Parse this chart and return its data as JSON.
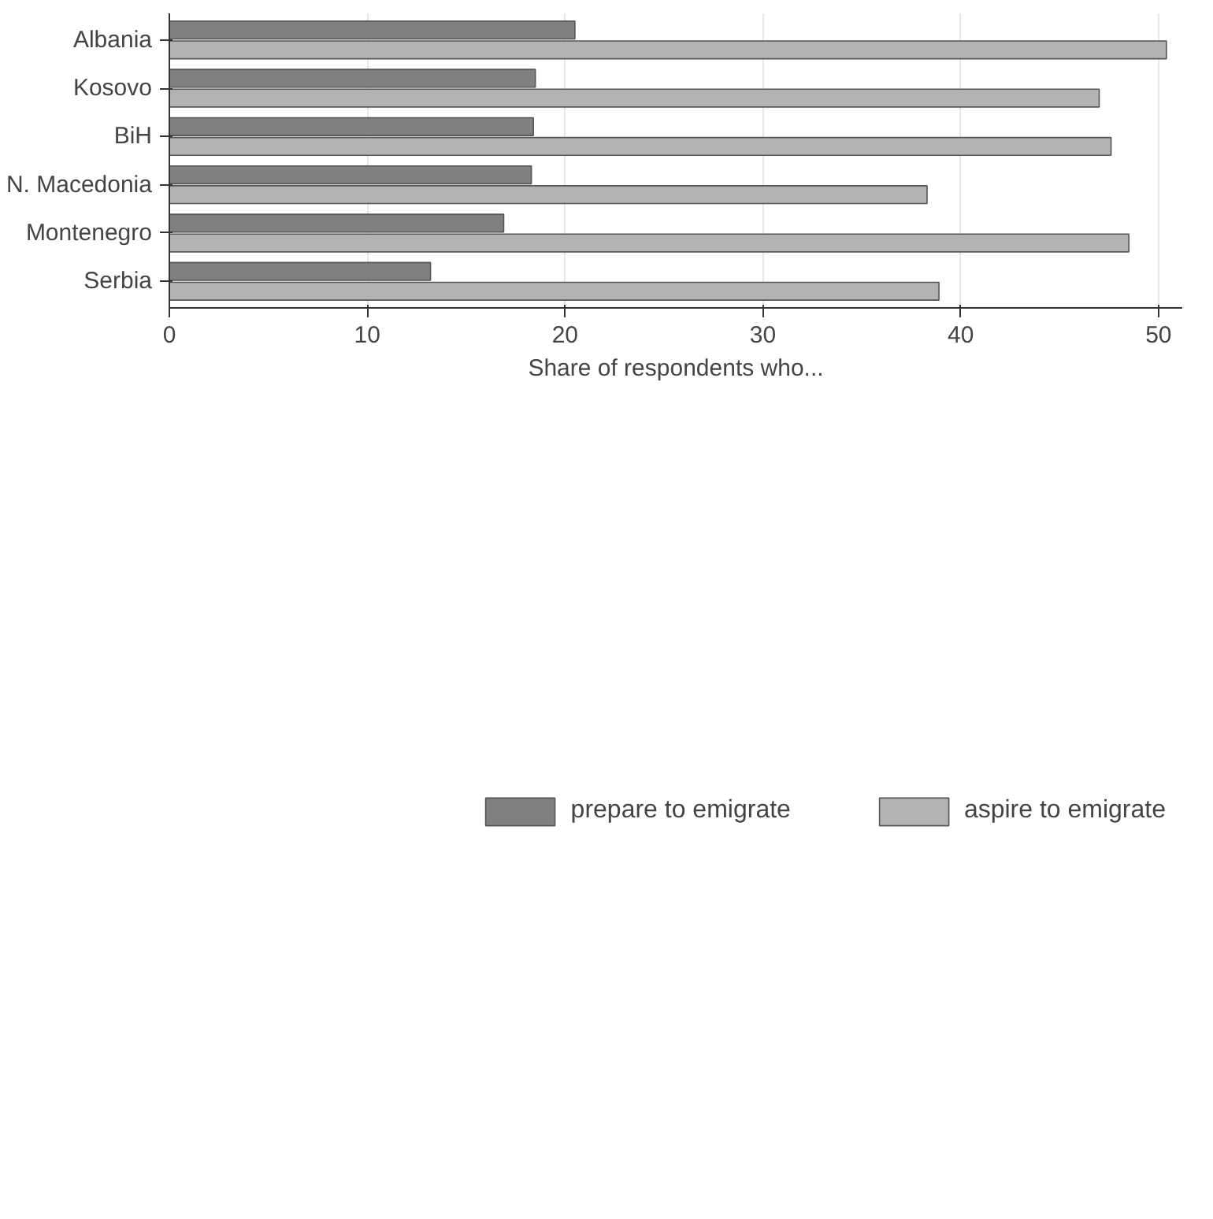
{
  "chart_data": {
    "type": "bar",
    "orientation": "horizontal",
    "xlabel": "Share of respondents who...",
    "categories": [
      "Albania",
      "Kosovo",
      "BiH",
      "N. Macedonia",
      "Montenegro",
      "Serbia"
    ],
    "series": [
      {
        "name": "prepare to emigrate",
        "color": "#808080",
        "values": [
          20.5,
          18.5,
          18.4,
          18.3,
          16.9,
          13.2
        ]
      },
      {
        "name": "aspire to emigrate",
        "color": "#b3b3b3",
        "values": [
          50.4,
          47.0,
          47.6,
          38.3,
          48.5,
          38.9
        ]
      }
    ],
    "xlim": [
      0,
      51.2
    ],
    "xticks": [
      0,
      10,
      20,
      30,
      40,
      50
    ],
    "grid": "x",
    "legend": "bottom"
  }
}
